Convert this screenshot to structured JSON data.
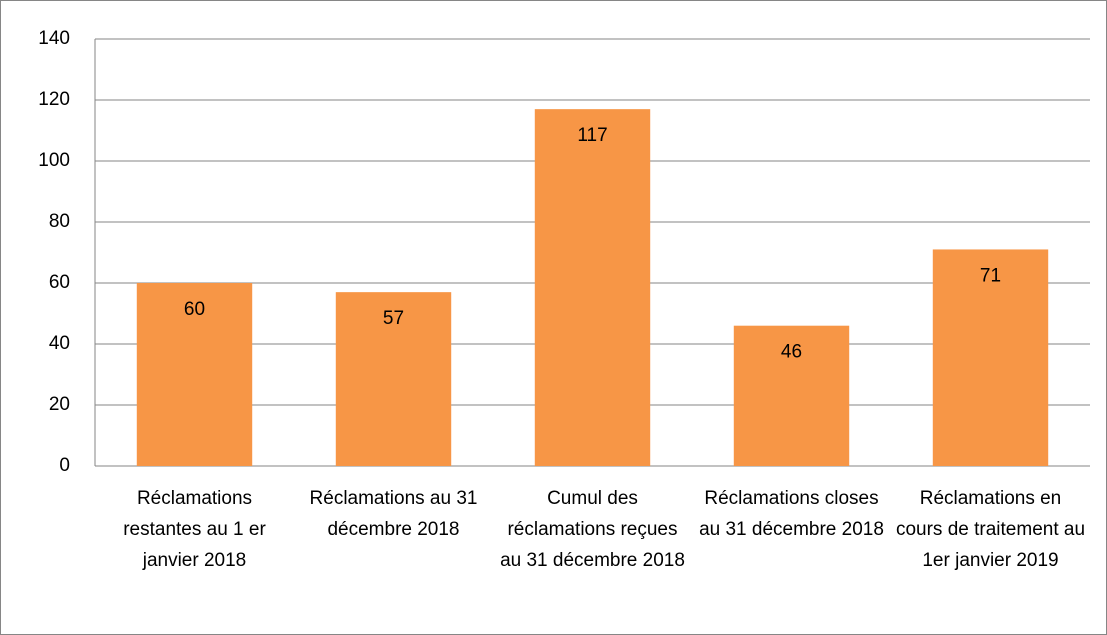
{
  "chart_data": {
    "type": "bar",
    "categories": [
      "Réclamations restantes au 1 er janvier 2018",
      "Réclamations au 31 décembre 2018",
      "Cumul des réclamations reçues au 31 décembre 2018",
      "Réclamations closes au 31 décembre 2018",
      "Réclamations en cours de traitement au 1er janvier 2019"
    ],
    "values": [
      60,
      57,
      117,
      46,
      71
    ],
    "color": "#f79646",
    "ylim": [
      0,
      140
    ],
    "yticks": [
      0,
      20,
      40,
      60,
      80,
      100,
      120,
      140
    ],
    "grid": true
  }
}
